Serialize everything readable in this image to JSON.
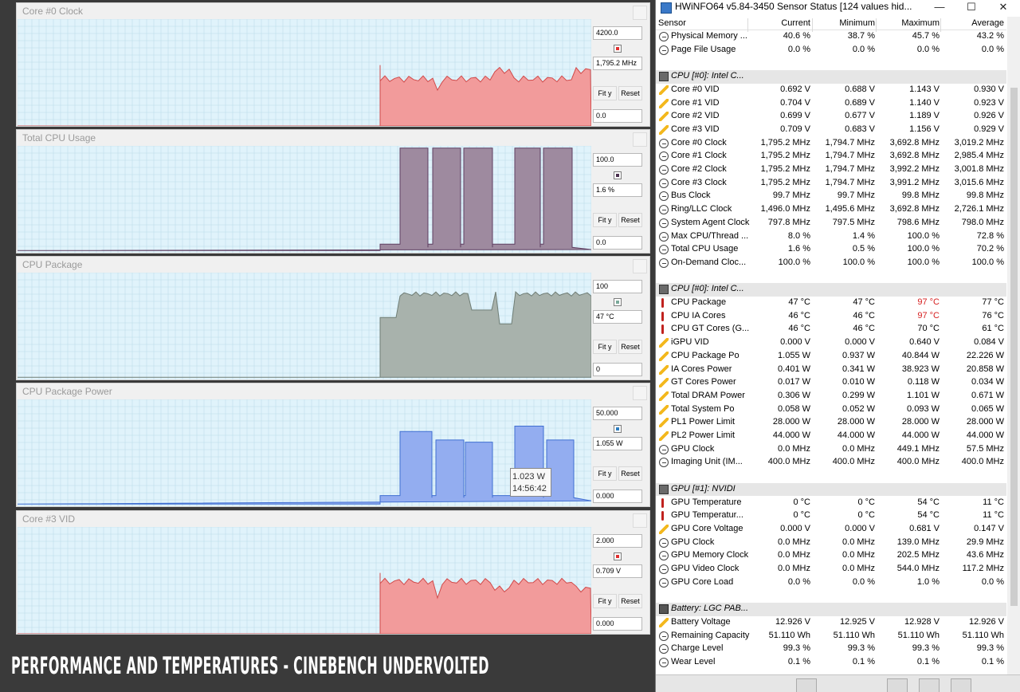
{
  "caption": "PERFORMANCE AND TEMPERATURES - CINEBENCH UNDERVOLTED",
  "graphs": [
    {
      "title": "Core #0 Clock",
      "max": "4200.0",
      "current": "1,795.2 MHz",
      "min": "0.0",
      "fit_label": "Fit y",
      "reset_label": "Reset",
      "color": "#f29b9b",
      "line_color": "#d04a4a",
      "swatch": "#e03030"
    },
    {
      "title": "Total CPU Usage",
      "max": "100.0",
      "current": "1.6 %",
      "min": "0.0",
      "fit_label": "Fit y",
      "reset_label": "Reset",
      "color": "#9e8a9f",
      "line_color": "#5f3f62",
      "swatch": "#4a2f4e"
    },
    {
      "title": "CPU Package",
      "max": "100",
      "current": "47 °C",
      "min": "0",
      "fit_label": "Fit y",
      "reset_label": "Reset",
      "color": "#a8b2ac",
      "line_color": "#6f7d75",
      "swatch": "#7aa99a"
    },
    {
      "title": "CPU Package Power",
      "max": "50.000",
      "current": "1.055 W",
      "min": "0.000",
      "fit_label": "Fit y",
      "reset_label": "Reset",
      "color": "#93adf0",
      "line_color": "#3f6fd2",
      "swatch": "#2d7dc0"
    },
    {
      "title": "Core #3 VID",
      "max": "2.000",
      "current": "0.709 V",
      "min": "0.000",
      "fit_label": "Fit y",
      "reset_label": "Reset",
      "color": "#f29b9b",
      "line_color": "#d04a4a",
      "swatch": "#e03030"
    }
  ],
  "tooltip": {
    "value": "1.023 W",
    "time": "14:56:42"
  },
  "hwinfo": {
    "title": "HWiNFO64 v5.84-3450 Sensor Status [124 values hid...",
    "minimize": "—",
    "maximize": "☐",
    "close": "✕",
    "columns": {
      "sensor": "Sensor",
      "current": "Current",
      "minimum": "Minimum",
      "maximum": "Maximum",
      "average": "Average"
    },
    "rows": [
      {
        "type": "data",
        "icon": "clock",
        "name": "Physical Memory ...",
        "cur": "40.6 %",
        "min": "38.7 %",
        "max": "45.7 %",
        "avg": "43.2 %"
      },
      {
        "type": "data",
        "icon": "clock",
        "name": "Page File Usage",
        "cur": "0.0 %",
        "min": "0.0 %",
        "max": "0.0 %",
        "avg": "0.0 %"
      },
      {
        "type": "blank"
      },
      {
        "type": "group",
        "icon": "chip",
        "name": "CPU [#0]: Intel C..."
      },
      {
        "type": "data",
        "icon": "volt",
        "name": "Core #0 VID",
        "cur": "0.692 V",
        "min": "0.688 V",
        "max": "1.143 V",
        "avg": "0.930 V"
      },
      {
        "type": "data",
        "icon": "volt",
        "name": "Core #1 VID",
        "cur": "0.704 V",
        "min": "0.689 V",
        "max": "1.140 V",
        "avg": "0.923 V"
      },
      {
        "type": "data",
        "icon": "volt",
        "name": "Core #2 VID",
        "cur": "0.699 V",
        "min": "0.677 V",
        "max": "1.189 V",
        "avg": "0.926 V"
      },
      {
        "type": "data",
        "icon": "volt",
        "name": "Core #3 VID",
        "cur": "0.709 V",
        "min": "0.683 V",
        "max": "1.156 V",
        "avg": "0.929 V"
      },
      {
        "type": "data",
        "icon": "clock",
        "name": "Core #0 Clock",
        "cur": "1,795.2 MHz",
        "min": "1,794.7 MHz",
        "max": "3,692.8 MHz",
        "avg": "3,019.2 MHz"
      },
      {
        "type": "data",
        "icon": "clock",
        "name": "Core #1 Clock",
        "cur": "1,795.2 MHz",
        "min": "1,794.7 MHz",
        "max": "3,692.8 MHz",
        "avg": "2,985.4 MHz"
      },
      {
        "type": "data",
        "icon": "clock",
        "name": "Core #2 Clock",
        "cur": "1,795.2 MHz",
        "min": "1,794.7 MHz",
        "max": "3,992.2 MHz",
        "avg": "3,001.8 MHz"
      },
      {
        "type": "data",
        "icon": "clock",
        "name": "Core #3 Clock",
        "cur": "1,795.2 MHz",
        "min": "1,794.7 MHz",
        "max": "3,991.2 MHz",
        "avg": "3,015.6 MHz"
      },
      {
        "type": "data",
        "icon": "clock",
        "name": "Bus Clock",
        "cur": "99.7 MHz",
        "min": "99.7 MHz",
        "max": "99.8 MHz",
        "avg": "99.8 MHz"
      },
      {
        "type": "data",
        "icon": "clock",
        "name": "Ring/LLC Clock",
        "cur": "1,496.0 MHz",
        "min": "1,495.6 MHz",
        "max": "3,692.8 MHz",
        "avg": "2,726.1 MHz"
      },
      {
        "type": "data",
        "icon": "clock",
        "name": "System Agent Clock",
        "cur": "797.8 MHz",
        "min": "797.5 MHz",
        "max": "798.6 MHz",
        "avg": "798.0 MHz"
      },
      {
        "type": "data",
        "icon": "clock",
        "name": "Max CPU/Thread ...",
        "cur": "8.0 %",
        "min": "1.4 %",
        "max": "100.0 %",
        "avg": "72.8 %"
      },
      {
        "type": "data",
        "icon": "clock",
        "name": "Total CPU Usage",
        "cur": "1.6 %",
        "min": "0.5 %",
        "max": "100.0 %",
        "avg": "70.2 %"
      },
      {
        "type": "data",
        "icon": "clock",
        "name": "On-Demand Cloc...",
        "cur": "100.0 %",
        "min": "100.0 %",
        "max": "100.0 %",
        "avg": "100.0 %"
      },
      {
        "type": "blank"
      },
      {
        "type": "group",
        "icon": "chip",
        "name": "CPU [#0]: Intel C..."
      },
      {
        "type": "data",
        "icon": "temp",
        "name": "CPU Package",
        "cur": "47 °C",
        "min": "47 °C",
        "max": "97 °C",
        "avg": "77 °C",
        "max_alert": true
      },
      {
        "type": "data",
        "icon": "temp",
        "name": "CPU IA Cores",
        "cur": "46 °C",
        "min": "46 °C",
        "max": "97 °C",
        "avg": "76 °C",
        "max_alert": true
      },
      {
        "type": "data",
        "icon": "temp",
        "name": "CPU GT Cores (G...",
        "cur": "46 °C",
        "min": "46 °C",
        "max": "70 °C",
        "avg": "61 °C"
      },
      {
        "type": "data",
        "icon": "volt",
        "name": "iGPU VID",
        "cur": "0.000 V",
        "min": "0.000 V",
        "max": "0.640 V",
        "avg": "0.084 V"
      },
      {
        "type": "data",
        "icon": "volt",
        "name": "CPU Package Po",
        "cur": "1.055 W",
        "min": "0.937 W",
        "max": "40.844 W",
        "avg": "22.226 W"
      },
      {
        "type": "data",
        "icon": "volt",
        "name": "IA Cores Power",
        "cur": "0.401 W",
        "min": "0.341 W",
        "max": "38.923 W",
        "avg": "20.858 W"
      },
      {
        "type": "data",
        "icon": "volt",
        "name": "GT Cores Power",
        "cur": "0.017 W",
        "min": "0.010 W",
        "max": "0.118 W",
        "avg": "0.034 W"
      },
      {
        "type": "data",
        "icon": "volt",
        "name": "Total DRAM Power",
        "cur": "0.306 W",
        "min": "0.299 W",
        "max": "1.101 W",
        "avg": "0.671 W"
      },
      {
        "type": "data",
        "icon": "volt",
        "name": "Total System Po",
        "cur": "0.058 W",
        "min": "0.052 W",
        "max": "0.093 W",
        "avg": "0.065 W"
      },
      {
        "type": "data",
        "icon": "volt",
        "name": "PL1 Power Limit",
        "cur": "28.000 W",
        "min": "28.000 W",
        "max": "28.000 W",
        "avg": "28.000 W"
      },
      {
        "type": "data",
        "icon": "volt",
        "name": "PL2 Power Limit",
        "cur": "44.000 W",
        "min": "44.000 W",
        "max": "44.000 W",
        "avg": "44.000 W"
      },
      {
        "type": "data",
        "icon": "clock",
        "name": "GPU Clock",
        "cur": "0.0 MHz",
        "min": "0.0 MHz",
        "max": "449.1 MHz",
        "avg": "57.5 MHz"
      },
      {
        "type": "data",
        "icon": "clock",
        "name": "Imaging Unit (IM...",
        "cur": "400.0 MHz",
        "min": "400.0 MHz",
        "max": "400.0 MHz",
        "avg": "400.0 MHz"
      },
      {
        "type": "blank"
      },
      {
        "type": "group",
        "icon": "chip",
        "name": "GPU [#1]: NVIDI"
      },
      {
        "type": "data",
        "icon": "temp",
        "name": "GPU Temperature",
        "cur": "0 °C",
        "min": "0 °C",
        "max": "54 °C",
        "avg": "11 °C"
      },
      {
        "type": "data",
        "icon": "temp",
        "name": "GPU Temperatur...",
        "cur": "0 °C",
        "min": "0 °C",
        "max": "54 °C",
        "avg": "11 °C"
      },
      {
        "type": "data",
        "icon": "volt",
        "name": "GPU Core Voltage",
        "cur": "0.000 V",
        "min": "0.000 V",
        "max": "0.681 V",
        "avg": "0.147 V"
      },
      {
        "type": "data",
        "icon": "clock",
        "name": "GPU Clock",
        "cur": "0.0 MHz",
        "min": "0.0 MHz",
        "max": "139.0 MHz",
        "avg": "29.9 MHz"
      },
      {
        "type": "data",
        "icon": "clock",
        "name": "GPU Memory Clock",
        "cur": "0.0 MHz",
        "min": "0.0 MHz",
        "max": "202.5 MHz",
        "avg": "43.6 MHz"
      },
      {
        "type": "data",
        "icon": "clock",
        "name": "GPU Video Clock",
        "cur": "0.0 MHz",
        "min": "0.0 MHz",
        "max": "544.0 MHz",
        "avg": "117.2 MHz"
      },
      {
        "type": "data",
        "icon": "clock",
        "name": "GPU Core Load",
        "cur": "0.0 %",
        "min": "0.0 %",
        "max": "1.0 %",
        "avg": "0.0 %"
      },
      {
        "type": "blank"
      },
      {
        "type": "group",
        "icon": "batt",
        "name": "Battery: LGC PAB..."
      },
      {
        "type": "data",
        "icon": "volt",
        "name": "Battery Voltage",
        "cur": "12.926 V",
        "min": "12.925 V",
        "max": "12.928 V",
        "avg": "12.926 V"
      },
      {
        "type": "data",
        "icon": "clock",
        "name": "Remaining Capacity",
        "cur": "51.110 Wh",
        "min": "51.110 Wh",
        "max": "51.110 Wh",
        "avg": "51.110 Wh"
      },
      {
        "type": "data",
        "icon": "clock",
        "name": "Charge Level",
        "cur": "99.3 %",
        "min": "99.3 %",
        "max": "99.3 %",
        "avg": "99.3 %"
      },
      {
        "type": "data",
        "icon": "clock",
        "name": "Wear Level",
        "cur": "0.1 %",
        "min": "0.1 %",
        "max": "0.1 %",
        "avg": "0.1 %"
      }
    ]
  },
  "colors": {
    "alert": "#d62020",
    "grid_bg": "#e0f3fb",
    "grid_line": "#bcdcea"
  },
  "icons": {
    "clock": "sensor-clock-icon",
    "volt": "lightning-icon",
    "temp": "thermometer-icon",
    "chip": "chip-icon",
    "batt": "battery-icon"
  }
}
